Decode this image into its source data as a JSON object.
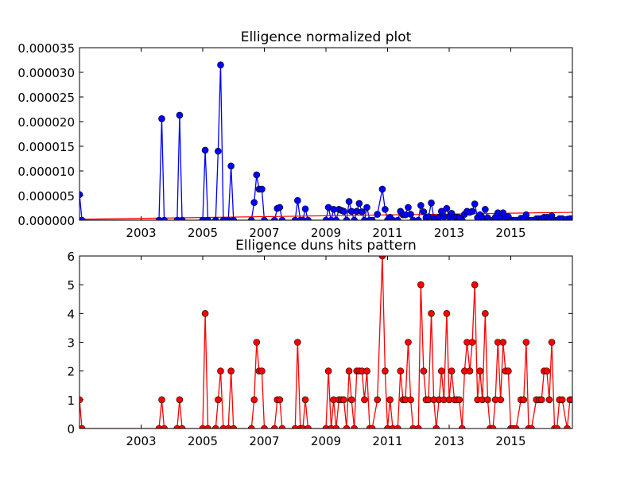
{
  "chart_data": [
    {
      "type": "line",
      "title": "Elligence normalized plot",
      "xlabel": "",
      "ylabel": "",
      "xlim": [
        2001.0,
        2017.0
      ],
      "ylim": [
        0,
        3.5e-05
      ],
      "x_ticks": [
        2003,
        2005,
        2007,
        2009,
        2011,
        2013,
        2015
      ],
      "y_ticks": [
        0.0,
        5e-06,
        1e-05,
        1.5e-05,
        2e-05,
        2.5e-05,
        3e-05,
        3.5e-05
      ],
      "y_tick_labels": [
        "0.000000",
        "0.000005",
        "0.000010",
        "0.000015",
        "0.000020",
        "0.000025",
        "0.000030",
        "0.000035"
      ],
      "series": [
        {
          "color": "#0000ff",
          "marker": "circle",
          "points": [
            [
              2001.0,
              5.2e-06
            ],
            [
              2001.08,
              0
            ],
            [
              2003.58,
              0
            ],
            [
              2003.67,
              2.06e-05
            ],
            [
              2003.75,
              0
            ],
            [
              2004.17,
              0
            ],
            [
              2004.25,
              2.13e-05
            ],
            [
              2004.33,
              0
            ],
            [
              2005.0,
              0
            ],
            [
              2005.08,
              1.42e-05
            ],
            [
              2005.17,
              0
            ],
            [
              2005.42,
              0
            ],
            [
              2005.5,
              1.4e-05
            ],
            [
              2005.58,
              3.15e-05
            ],
            [
              2005.67,
              0
            ],
            [
              2005.83,
              0
            ],
            [
              2005.92,
              1.1e-05
            ],
            [
              2006.0,
              0
            ],
            [
              2006.58,
              0
            ],
            [
              2006.67,
              3.6e-06
            ],
            [
              2006.75,
              9.2e-06
            ],
            [
              2006.83,
              6.3e-06
            ],
            [
              2006.92,
              6.3e-06
            ],
            [
              2007.0,
              0
            ],
            [
              2007.33,
              0
            ],
            [
              2007.42,
              2.4e-06
            ],
            [
              2007.5,
              2.6e-06
            ],
            [
              2007.58,
              0
            ],
            [
              2008.0,
              0
            ],
            [
              2008.08,
              4e-06
            ],
            [
              2008.17,
              0
            ],
            [
              2008.25,
              0
            ],
            [
              2008.33,
              2.3e-06
            ],
            [
              2008.42,
              0
            ],
            [
              2009.0,
              0
            ],
            [
              2009.08,
              2.6e-06
            ],
            [
              2009.17,
              0
            ],
            [
              2009.25,
              2.2e-06
            ],
            [
              2009.33,
              0
            ],
            [
              2009.42,
              2.2e-06
            ],
            [
              2009.5,
              2e-06
            ],
            [
              2009.58,
              1.8e-06
            ],
            [
              2009.67,
              0
            ],
            [
              2009.75,
              3.8e-06
            ],
            [
              2009.83,
              1.8e-06
            ],
            [
              2009.92,
              0
            ],
            [
              2010.0,
              1.8e-06
            ],
            [
              2010.08,
              3.4e-06
            ],
            [
              2010.17,
              1.7e-06
            ],
            [
              2010.25,
              0
            ],
            [
              2010.33,
              2.6e-06
            ],
            [
              2010.42,
              0
            ],
            [
              2010.5,
              0
            ],
            [
              2010.67,
              1.2e-06
            ],
            [
              2010.83,
              6.3e-06
            ],
            [
              2010.92,
              2.2e-06
            ],
            [
              2011.0,
              0
            ],
            [
              2011.08,
              6e-07
            ],
            [
              2011.17,
              0
            ],
            [
              2011.33,
              0
            ],
            [
              2011.42,
              1.8e-06
            ],
            [
              2011.5,
              1.1e-06
            ],
            [
              2011.58,
              1.1e-06
            ],
            [
              2011.67,
              2.6e-06
            ],
            [
              2011.75,
              1.2e-06
            ],
            [
              2011.83,
              0
            ],
            [
              2012.0,
              0
            ],
            [
              2012.08,
              3e-06
            ],
            [
              2012.17,
              1.7e-06
            ],
            [
              2012.25,
              5e-07
            ],
            [
              2012.33,
              7e-07
            ],
            [
              2012.42,
              3.5e-06
            ],
            [
              2012.5,
              5e-07
            ],
            [
              2012.58,
              0
            ],
            [
              2012.67,
              6e-07
            ],
            [
              2012.75,
              1.8e-06
            ],
            [
              2012.83,
              7e-07
            ],
            [
              2012.92,
              2.4e-06
            ],
            [
              2013.0,
              7e-07
            ],
            [
              2013.08,
              1.4e-06
            ],
            [
              2013.17,
              6e-07
            ],
            [
              2013.25,
              6e-07
            ],
            [
              2013.33,
              5e-07
            ],
            [
              2013.42,
              0
            ],
            [
              2013.5,
              1.2e-06
            ],
            [
              2013.58,
              1.8e-06
            ],
            [
              2013.67,
              1.6e-06
            ],
            [
              2013.75,
              1.8e-06
            ],
            [
              2013.83,
              3.3e-06
            ],
            [
              2013.92,
              5e-07
            ],
            [
              2014.0,
              1.1e-06
            ],
            [
              2014.08,
              5e-07
            ],
            [
              2014.17,
              2.2e-06
            ],
            [
              2014.25,
              5e-07
            ],
            [
              2014.33,
              0
            ],
            [
              2014.42,
              0
            ],
            [
              2014.5,
              6e-07
            ],
            [
              2014.58,
              1.5e-06
            ],
            [
              2014.67,
              6e-07
            ],
            [
              2014.75,
              1.5e-06
            ],
            [
              2014.83,
              7e-07
            ],
            [
              2014.92,
              7e-07
            ],
            [
              2015.0,
              0
            ],
            [
              2015.08,
              0
            ],
            [
              2015.17,
              0
            ],
            [
              2015.33,
              4e-07
            ],
            [
              2015.42,
              4e-07
            ],
            [
              2015.5,
              1.1e-06
            ],
            [
              2015.58,
              0
            ],
            [
              2015.67,
              0
            ],
            [
              2015.83,
              3e-07
            ],
            [
              2015.92,
              3e-07
            ],
            [
              2016.0,
              3e-07
            ],
            [
              2016.08,
              6e-07
            ],
            [
              2016.17,
              6e-07
            ],
            [
              2016.25,
              2e-07
            ],
            [
              2016.33,
              9e-07
            ],
            [
              2016.42,
              0
            ],
            [
              2016.5,
              0
            ],
            [
              2016.58,
              3e-07
            ],
            [
              2016.67,
              3e-07
            ],
            [
              2016.83,
              2e-07
            ],
            [
              2016.92,
              3e-07
            ],
            [
              2017.0,
              3e-07
            ]
          ]
        }
      ],
      "trend_line": {
        "color": "#ff0000",
        "points": [
          [
            2001.0,
            2e-07
          ],
          [
            2017.0,
            1.6e-06
          ]
        ]
      }
    },
    {
      "type": "line",
      "title": "Elligence duns hits pattern",
      "xlabel": "",
      "ylabel": "",
      "xlim": [
        2001.0,
        2017.0
      ],
      "ylim": [
        0,
        6
      ],
      "x_ticks": [
        2003,
        2005,
        2007,
        2009,
        2011,
        2013,
        2015
      ],
      "y_ticks": [
        0,
        1,
        2,
        3,
        4,
        5,
        6
      ],
      "y_tick_labels": [
        "0",
        "1",
        "2",
        "3",
        "4",
        "5",
        "6"
      ],
      "series": [
        {
          "color": "#ff0000",
          "marker": "circle",
          "points": [
            [
              2001.0,
              1
            ],
            [
              2001.08,
              0
            ],
            [
              2003.58,
              0
            ],
            [
              2003.67,
              1
            ],
            [
              2003.75,
              0
            ],
            [
              2004.17,
              0
            ],
            [
              2004.25,
              1
            ],
            [
              2004.33,
              0
            ],
            [
              2005.0,
              0
            ],
            [
              2005.08,
              4
            ],
            [
              2005.17,
              0
            ],
            [
              2005.42,
              0
            ],
            [
              2005.5,
              1
            ],
            [
              2005.58,
              2
            ],
            [
              2005.67,
              0
            ],
            [
              2005.83,
              0
            ],
            [
              2005.92,
              2
            ],
            [
              2006.0,
              0
            ],
            [
              2006.58,
              0
            ],
            [
              2006.67,
              1
            ],
            [
              2006.75,
              3
            ],
            [
              2006.83,
              2
            ],
            [
              2006.92,
              2
            ],
            [
              2007.0,
              0
            ],
            [
              2007.33,
              0
            ],
            [
              2007.42,
              1
            ],
            [
              2007.5,
              1
            ],
            [
              2007.58,
              0
            ],
            [
              2008.0,
              0
            ],
            [
              2008.08,
              3
            ],
            [
              2008.17,
              0
            ],
            [
              2008.25,
              0
            ],
            [
              2008.33,
              1
            ],
            [
              2008.42,
              0
            ],
            [
              2009.0,
              0
            ],
            [
              2009.08,
              2
            ],
            [
              2009.17,
              0
            ],
            [
              2009.25,
              1
            ],
            [
              2009.33,
              0
            ],
            [
              2009.42,
              1
            ],
            [
              2009.5,
              1
            ],
            [
              2009.58,
              1
            ],
            [
              2009.67,
              0
            ],
            [
              2009.75,
              2
            ],
            [
              2009.83,
              1
            ],
            [
              2009.92,
              0
            ],
            [
              2010.0,
              2
            ],
            [
              2010.08,
              2
            ],
            [
              2010.17,
              2
            ],
            [
              2010.25,
              1
            ],
            [
              2010.33,
              2
            ],
            [
              2010.42,
              0
            ],
            [
              2010.5,
              0
            ],
            [
              2010.67,
              1
            ],
            [
              2010.83,
              6
            ],
            [
              2010.92,
              2
            ],
            [
              2011.0,
              0
            ],
            [
              2011.08,
              1
            ],
            [
              2011.17,
              0
            ],
            [
              2011.33,
              0
            ],
            [
              2011.42,
              2
            ],
            [
              2011.5,
              1
            ],
            [
              2011.58,
              1
            ],
            [
              2011.67,
              3
            ],
            [
              2011.75,
              1
            ],
            [
              2011.83,
              0
            ],
            [
              2012.0,
              0
            ],
            [
              2012.08,
              5
            ],
            [
              2012.17,
              2
            ],
            [
              2012.25,
              1
            ],
            [
              2012.33,
              1
            ],
            [
              2012.42,
              4
            ],
            [
              2012.5,
              1
            ],
            [
              2012.58,
              0
            ],
            [
              2012.67,
              1
            ],
            [
              2012.75,
              2
            ],
            [
              2012.83,
              1
            ],
            [
              2012.92,
              4
            ],
            [
              2013.0,
              1
            ],
            [
              2013.08,
              2
            ],
            [
              2013.17,
              1
            ],
            [
              2013.25,
              1
            ],
            [
              2013.33,
              1
            ],
            [
              2013.42,
              0
            ],
            [
              2013.5,
              2
            ],
            [
              2013.58,
              3
            ],
            [
              2013.67,
              2
            ],
            [
              2013.75,
              3
            ],
            [
              2013.83,
              5
            ],
            [
              2013.92,
              1
            ],
            [
              2014.0,
              2
            ],
            [
              2014.08,
              1
            ],
            [
              2014.17,
              4
            ],
            [
              2014.25,
              1
            ],
            [
              2014.33,
              0
            ],
            [
              2014.42,
              0
            ],
            [
              2014.5,
              1
            ],
            [
              2014.58,
              3
            ],
            [
              2014.67,
              1
            ],
            [
              2014.75,
              3
            ],
            [
              2014.83,
              2
            ],
            [
              2014.92,
              2
            ],
            [
              2015.0,
              0
            ],
            [
              2015.08,
              0
            ],
            [
              2015.17,
              0
            ],
            [
              2015.33,
              1
            ],
            [
              2015.42,
              1
            ],
            [
              2015.5,
              3
            ],
            [
              2015.58,
              0
            ],
            [
              2015.67,
              0
            ],
            [
              2015.83,
              1
            ],
            [
              2015.92,
              1
            ],
            [
              2016.0,
              1
            ],
            [
              2016.08,
              2
            ],
            [
              2016.17,
              2
            ],
            [
              2016.25,
              1
            ],
            [
              2016.33,
              3
            ],
            [
              2016.42,
              0
            ],
            [
              2016.5,
              0
            ],
            [
              2016.58,
              1
            ],
            [
              2016.67,
              1
            ],
            [
              2016.83,
              0
            ],
            [
              2016.92,
              1
            ],
            [
              2017.0,
              1
            ]
          ]
        }
      ]
    }
  ]
}
